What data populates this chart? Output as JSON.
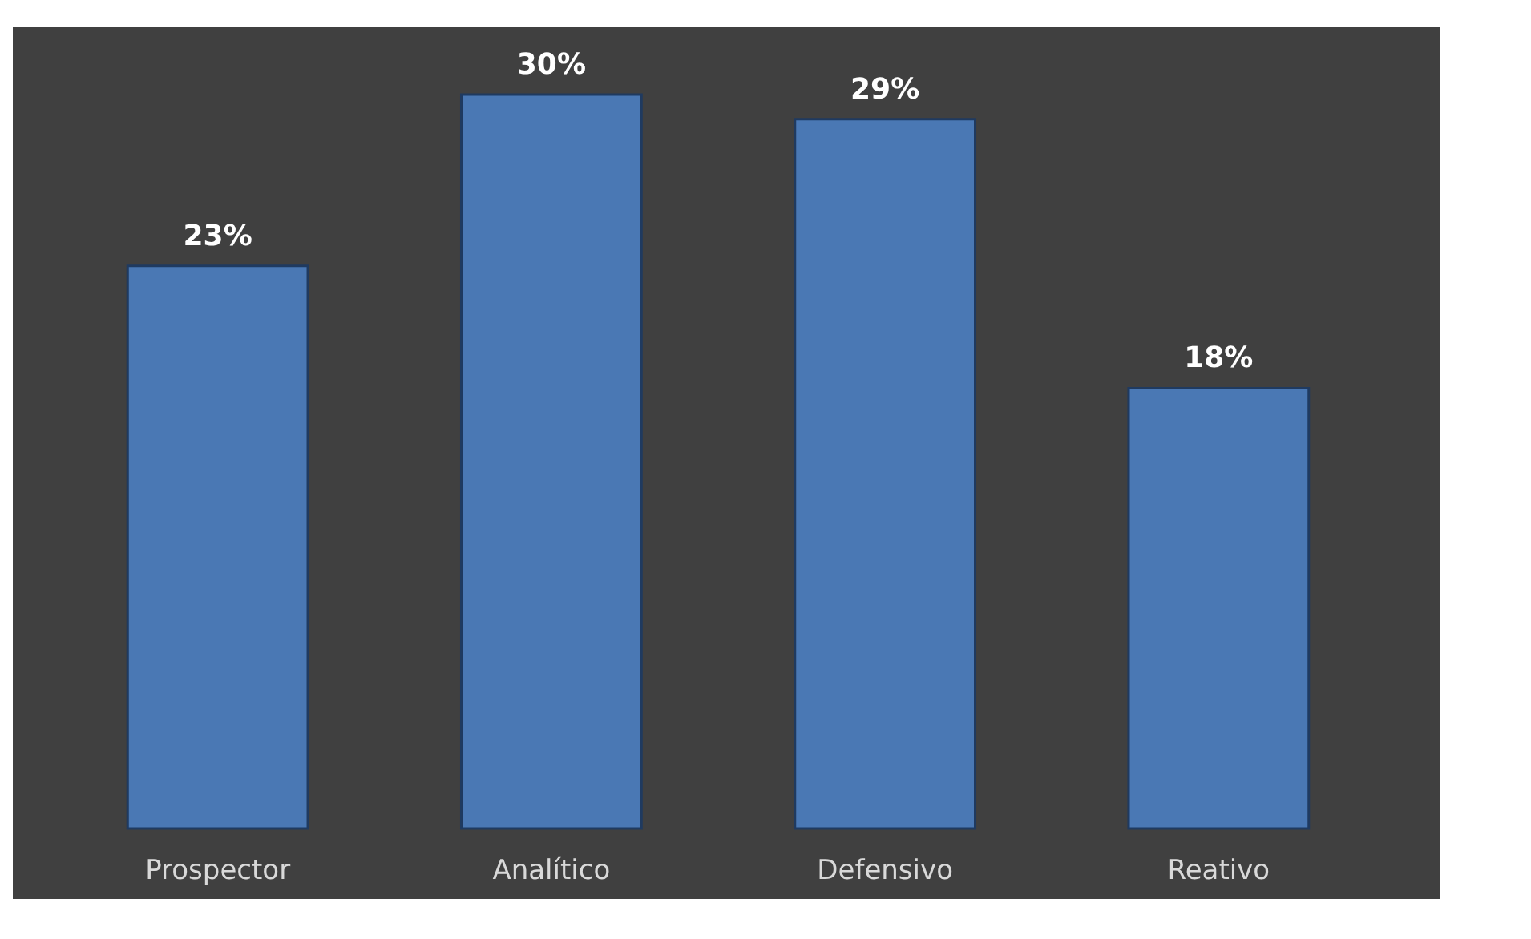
{
  "chart_data": {
    "type": "bar",
    "categories": [
      "Prospector",
      "Analítico",
      "Defensivo",
      "Reativo"
    ],
    "values": [
      23,
      30,
      29,
      18
    ],
    "value_labels": [
      "23%",
      "30%",
      "29%",
      "18%"
    ],
    "color": "#4a78b4",
    "grid": false
  }
}
